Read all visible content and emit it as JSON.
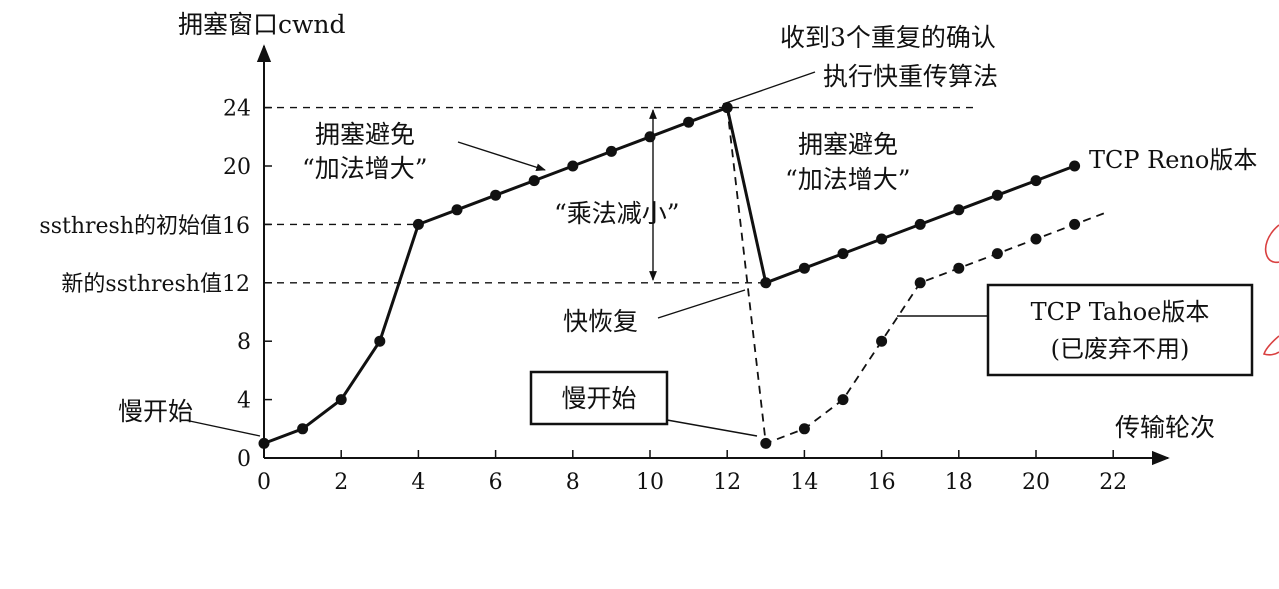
{
  "chart_data": {
    "type": "line",
    "ylabel": "拥塞窗口cwnd",
    "xlabel": "传输轮次",
    "xlim": [
      0,
      22.5
    ],
    "ylim": [
      0,
      28
    ],
    "x_ticks": [
      0,
      2,
      4,
      6,
      8,
      10,
      12,
      14,
      16,
      18,
      20,
      22
    ],
    "y_ticks": [
      0,
      4,
      8,
      12,
      16,
      20,
      24
    ],
    "y_tick_labels": [
      "0",
      "4",
      "8",
      "12",
      "16",
      "20",
      "24"
    ],
    "y_reference_labels": {
      "initial_ssthresh": "ssthresh的初始值16",
      "new_ssthresh": "新的ssthresh值12"
    },
    "grid": false,
    "series": [
      {
        "name": "TCP Reno版本",
        "style": "solid",
        "points": [
          [
            0,
            1
          ],
          [
            1,
            2
          ],
          [
            2,
            4
          ],
          [
            3,
            8
          ],
          [
            4,
            16
          ],
          [
            5,
            17
          ],
          [
            6,
            18
          ],
          [
            7,
            19
          ],
          [
            8,
            20
          ],
          [
            9,
            21
          ],
          [
            10,
            22
          ],
          [
            11,
            23
          ],
          [
            12,
            24
          ],
          [
            13,
            12
          ],
          [
            14,
            13
          ],
          [
            15,
            14
          ],
          [
            16,
            15
          ],
          [
            17,
            16
          ],
          [
            18,
            17
          ],
          [
            19,
            18
          ],
          [
            20,
            19
          ],
          [
            21,
            20
          ]
        ]
      },
      {
        "name": "TCP Tahoe版本",
        "style": "dashed",
        "points": [
          [
            12,
            24
          ],
          [
            13,
            1
          ],
          [
            14,
            2
          ],
          [
            15,
            4
          ],
          [
            16,
            8
          ],
          [
            17,
            12
          ],
          [
            18,
            13
          ],
          [
            19,
            14
          ],
          [
            20,
            15
          ],
          [
            21,
            16
          ]
        ],
        "extends_to_x": 21.8
      }
    ],
    "reference_lines": [
      {
        "y": 24,
        "x_to": 18.5
      },
      {
        "y": 16,
        "x_to": 4
      },
      {
        "y": 12,
        "x_to": 13
      }
    ],
    "annotations": {
      "slow_start_left": "慢开始",
      "congestion_avoid_1": [
        "拥塞避免",
        "“加法增大”"
      ],
      "multiplicative": "“乘法减小”",
      "three_dup_acks": [
        "收到3个重复的确认",
        "执行快重传算法"
      ],
      "congestion_avoid_2": [
        "拥塞避免",
        "“加法增大”"
      ],
      "fast_recovery": "快恢复",
      "slow_start_box": "慢开始",
      "reno_label": "TCP Reno版本",
      "tahoe_box": [
        "TCP Tahoe版本",
        "(已废弃不用)"
      ]
    }
  }
}
